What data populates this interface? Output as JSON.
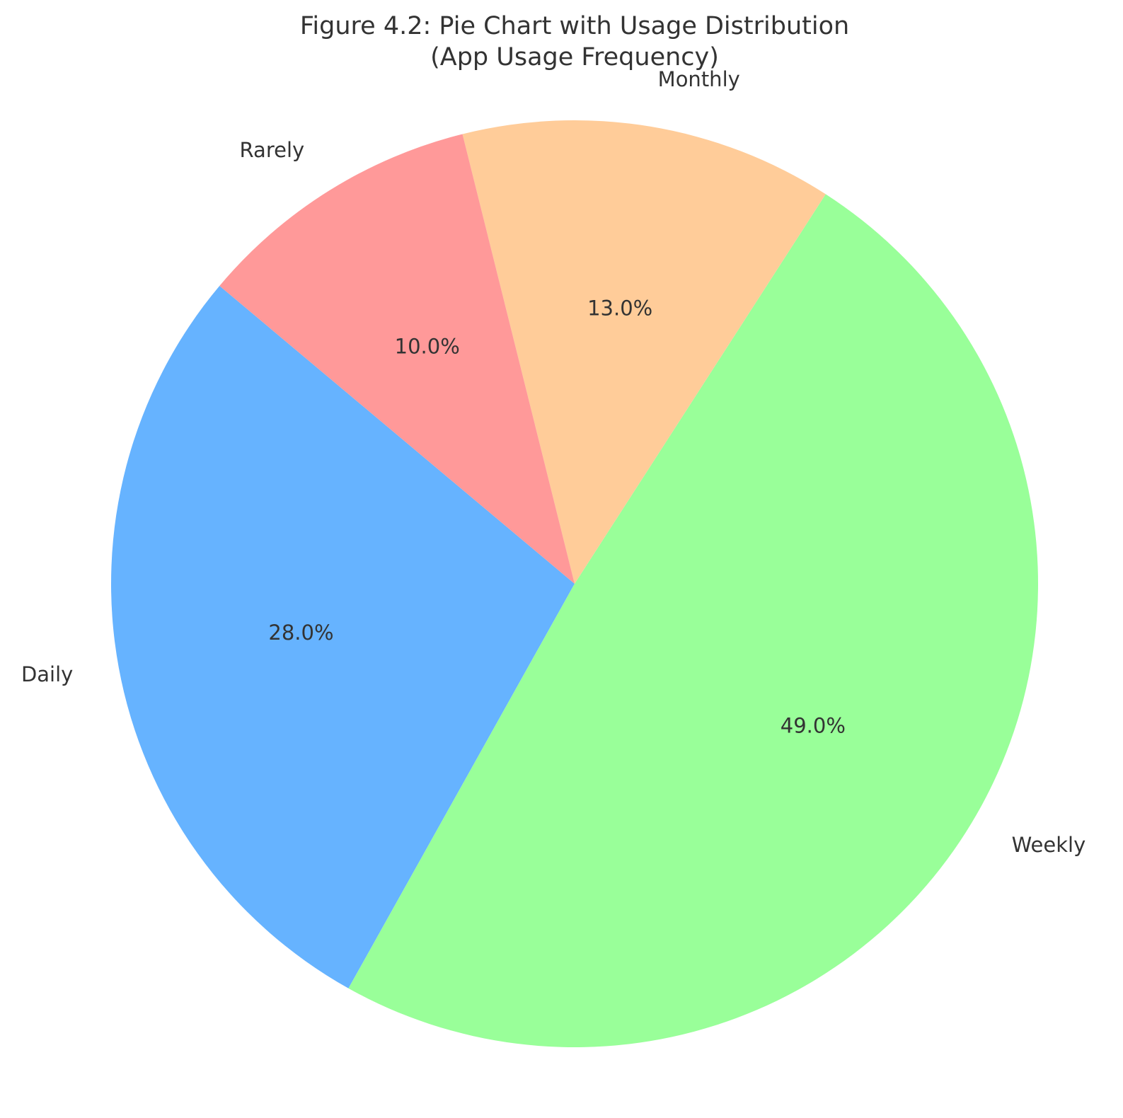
{
  "chart_data": {
    "type": "pie",
    "title_line1": "Figure 4.2: Pie Chart with Usage Distribution",
    "title_line2": "(App Usage Frequency)",
    "categories": [
      "Daily",
      "Weekly",
      "Monthly",
      "Rarely"
    ],
    "values": [
      28.0,
      49.0,
      13.0,
      10.0
    ],
    "percent_labels": [
      "28.0%",
      "49.0%",
      "13.0%",
      "10.0%"
    ],
    "colors": [
      "#66b3ff",
      "#99ff99",
      "#ffcc99",
      "#ff9999"
    ],
    "start_angle_deg": 140,
    "direction": "counterclockwise"
  }
}
